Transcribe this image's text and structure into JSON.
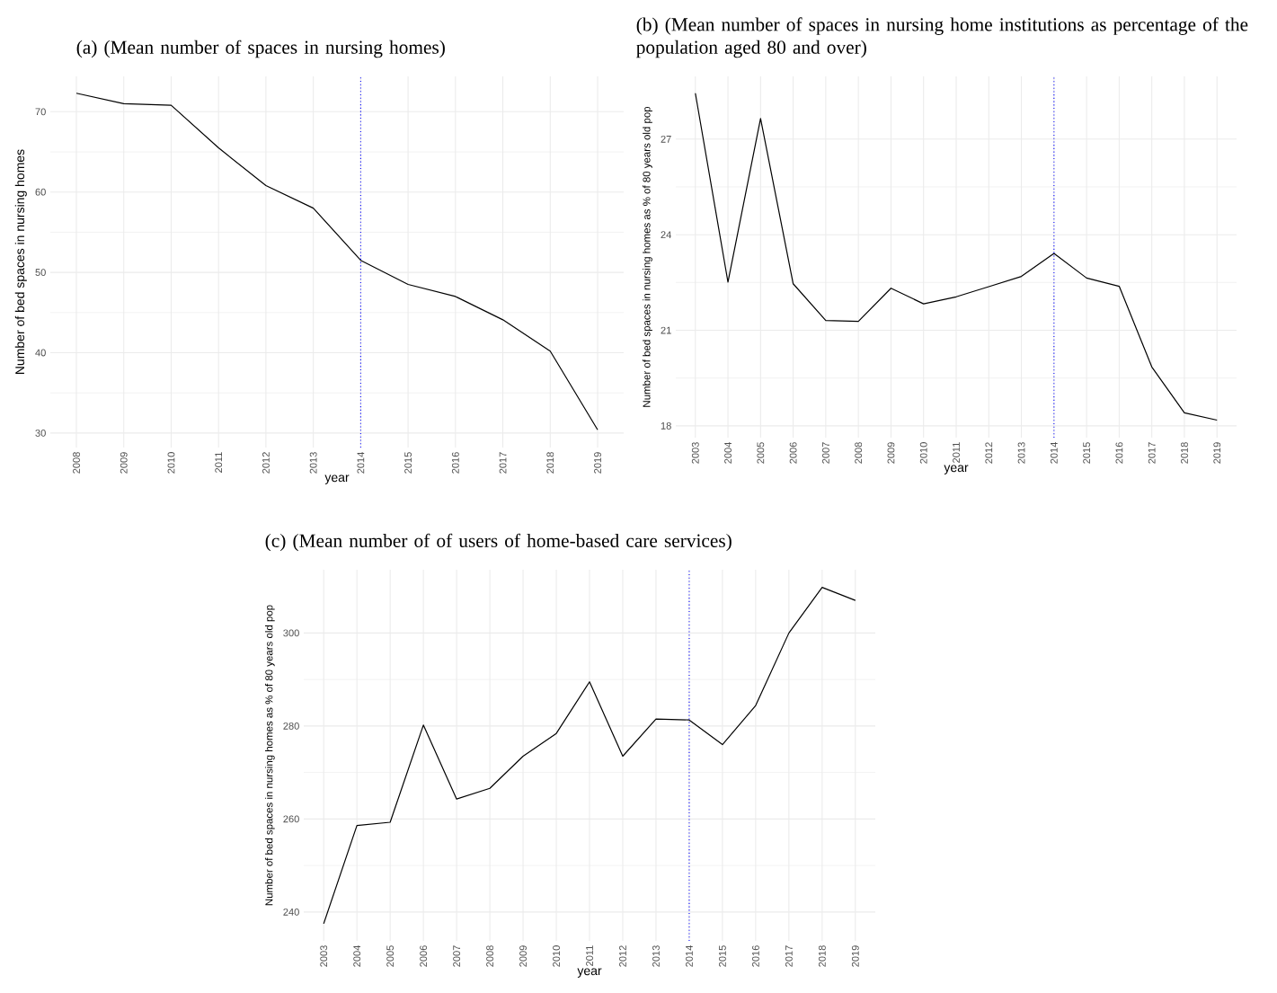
{
  "chart_data": [
    {
      "type": "line",
      "title": "(a) (Mean number of spaces in nursing homes)",
      "xlabel": "year",
      "ylabel": "Number of bed spaces in nursing homes",
      "x": [
        2008,
        2009,
        2010,
        2011,
        2012,
        2013,
        2014,
        2015,
        2016,
        2017,
        2018,
        2019
      ],
      "series": [
        {
          "color": "#000000",
          "values": [
            72.3,
            71.0,
            70.8,
            65.5,
            60.8,
            58.0,
            51.5,
            48.5,
            47.0,
            44.1,
            40.2,
            30.4
          ]
        }
      ],
      "xlim": [
        2007.45,
        2019.55
      ],
      "ylim": [
        28.2,
        74.4
      ],
      "xticks": [
        2008,
        2009,
        2010,
        2011,
        2012,
        2013,
        2014,
        2015,
        2016,
        2017,
        2018,
        2019
      ],
      "yticks": [
        30,
        40,
        50,
        60,
        70
      ],
      "grid": true,
      "ref_lines": [
        {
          "axis": "x",
          "value": 2014,
          "color": "#0000ff",
          "line_style": "dotted"
        }
      ]
    },
    {
      "type": "line",
      "title": "(b) (Mean number of spaces in nursing home institutions as percentage of the population aged 80 and over)",
      "xlabel": "year",
      "ylabel": "Number of bed spaces in nursing homes as % of 80 years old pop",
      "x": [
        2003,
        2004,
        2005,
        2006,
        2007,
        2008,
        2009,
        2010,
        2011,
        2012,
        2013,
        2014,
        2015,
        2016,
        2017,
        2018,
        2019
      ],
      "series": [
        {
          "color": "#000000",
          "values": [
            28.44,
            22.51,
            27.65,
            22.46,
            21.31,
            21.28,
            22.32,
            21.83,
            22.05,
            22.37,
            22.69,
            23.41,
            22.64,
            22.38,
            19.85,
            18.41,
            18.18
          ]
        }
      ],
      "xlim": [
        2002.4,
        2019.6
      ],
      "ylim": [
        17.63,
        28.97
      ],
      "xticks": [
        2003,
        2004,
        2005,
        2006,
        2007,
        2008,
        2009,
        2010,
        2011,
        2012,
        2013,
        2014,
        2015,
        2016,
        2017,
        2018,
        2019
      ],
      "yticks": [
        18,
        21,
        24,
        27
      ],
      "grid": true,
      "ref_lines": [
        {
          "axis": "x",
          "value": 2014,
          "color": "#0000ff",
          "line_style": "dotted"
        }
      ]
    },
    {
      "type": "line",
      "title": "(c) (Mean number of of users of home-based care services)",
      "xlabel": "year",
      "ylabel": "Number of bed spaces in nursing homes as % of 80 years old pop",
      "x": [
        2003,
        2004,
        2005,
        2006,
        2007,
        2008,
        2009,
        2010,
        2011,
        2012,
        2013,
        2014,
        2015,
        2016,
        2017,
        2018,
        2019
      ],
      "series": [
        {
          "color": "#000000",
          "values": [
            237.5,
            258.6,
            259.3,
            280.2,
            264.3,
            266.6,
            273.5,
            278.4,
            289.5,
            273.5,
            281.5,
            281.3,
            276.0,
            284.4,
            300.0,
            309.8,
            307.0
          ]
        }
      ],
      "xlim": [
        2002.4,
        2019.6
      ],
      "ylim": [
        233.8,
        313.6
      ],
      "xticks": [
        2003,
        2004,
        2005,
        2006,
        2007,
        2008,
        2009,
        2010,
        2011,
        2012,
        2013,
        2014,
        2015,
        2016,
        2017,
        2018,
        2019
      ],
      "yticks": [
        240,
        260,
        280,
        300
      ],
      "grid": true,
      "ref_lines": [
        {
          "axis": "x",
          "value": 2014,
          "color": "#0000ff",
          "line_style": "dotted"
        }
      ]
    }
  ]
}
